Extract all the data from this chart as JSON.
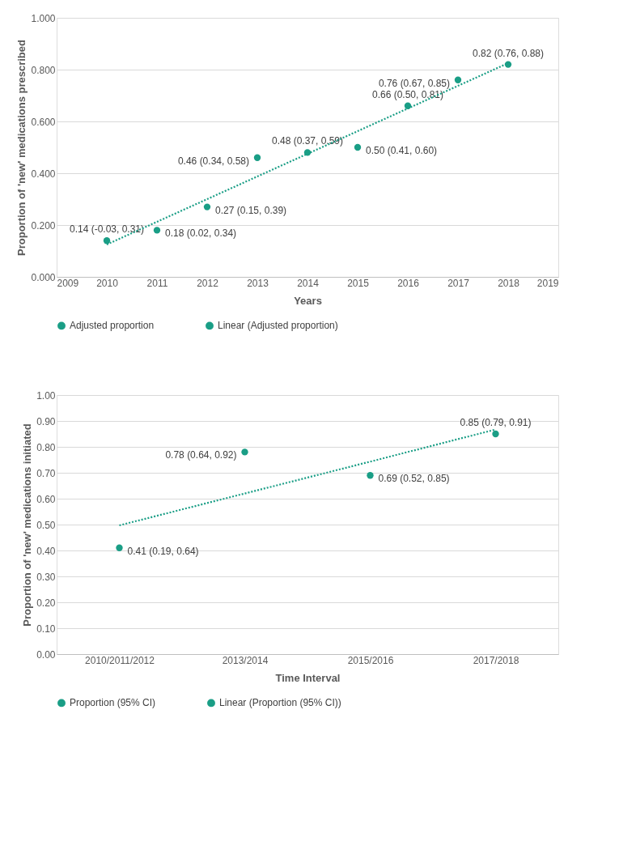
{
  "chart_data": [
    {
      "type": "scatter",
      "xlabel": "Years",
      "ylabel": "Proportion of 'new' medications prescribed",
      "x": [
        2010,
        2011,
        2012,
        2013,
        2014,
        2015,
        2016,
        2017,
        2018
      ],
      "xlim": [
        2009,
        2019
      ],
      "xticks": [
        2009,
        2010,
        2011,
        2012,
        2013,
        2014,
        2015,
        2016,
        2017,
        2018,
        2019
      ],
      "ylim": [
        0,
        1
      ],
      "yticks": [
        {
          "value": 0,
          "label": "0.000"
        },
        {
          "value": 0.2,
          "label": "0.200"
        },
        {
          "value": 0.4,
          "label": "0.400"
        },
        {
          "value": 0.6,
          "label": "0.600"
        },
        {
          "value": 0.8,
          "label": "0.800"
        },
        {
          "value": 1,
          "label": "1.000"
        }
      ],
      "grid": "y",
      "legend": "bottom",
      "series": [
        {
          "type": "scatter",
          "name": "Adjusted proportion",
          "color": "#1a9e86",
          "marker": "circle",
          "values": [
            0.14,
            0.18,
            0.27,
            0.46,
            0.48,
            0.5,
            0.66,
            0.76,
            0.82
          ],
          "value_labels": [
            "0.14 (-0.03, 0.31)",
            "0.18 (0.02, 0.34)",
            "0.27 (0.15, 0.39)",
            "0.46 (0.34, 0.58)",
            "0.48 (0.37, 0.59)",
            "0.50 (0.41, 0.60)",
            "0.66 (0.50, 0.81)",
            "0.76 (0.67, 0.85)",
            "0.82 (0.76, 0.88)"
          ]
        },
        {
          "type": "line",
          "name": "Linear (Adjusted proportion)",
          "color": "#1a9e86",
          "line_style": "dotted",
          "x": [
            2010,
            2018
          ],
          "values": [
            0.125,
            0.825
          ]
        }
      ]
    },
    {
      "type": "scatter",
      "xlabel": "Time Interval",
      "ylabel": "Proportion of 'new' medications initiated",
      "categories": [
        "2010/2011/2012",
        "2013/2014",
        "2015/2016",
        "2017/2018"
      ],
      "ylim": [
        0,
        1
      ],
      "yticks": [
        {
          "value": 0,
          "label": "0.00"
        },
        {
          "value": 0.1,
          "label": "0.10"
        },
        {
          "value": 0.2,
          "label": "0.20"
        },
        {
          "value": 0.3,
          "label": "0.30"
        },
        {
          "value": 0.4,
          "label": "0.40"
        },
        {
          "value": 0.5,
          "label": "0.50"
        },
        {
          "value": 0.6,
          "label": "0.60"
        },
        {
          "value": 0.7,
          "label": "0.70"
        },
        {
          "value": 0.8,
          "label": "0.80"
        },
        {
          "value": 0.9,
          "label": "0.90"
        },
        {
          "value": 1,
          "label": "1.00"
        }
      ],
      "grid": "y",
      "legend": "bottom",
      "series": [
        {
          "type": "scatter",
          "name": "Proportion (95% CI)",
          "color": "#1a9e86",
          "marker": "circle",
          "values": [
            0.41,
            0.78,
            0.69,
            0.85
          ],
          "value_labels": [
            "0.41 (0.19, 0.64)",
            "0.78 (0.64, 0.92)",
            "0.69 (0.52, 0.85)",
            "0.85 (0.79, 0.91)"
          ]
        },
        {
          "type": "line",
          "name": "Linear (Proportion (95% CI))",
          "color": "#1a9e86",
          "line_style": "dotted",
          "values": [
            0.497,
            0.62,
            0.743,
            0.867
          ]
        }
      ]
    }
  ]
}
